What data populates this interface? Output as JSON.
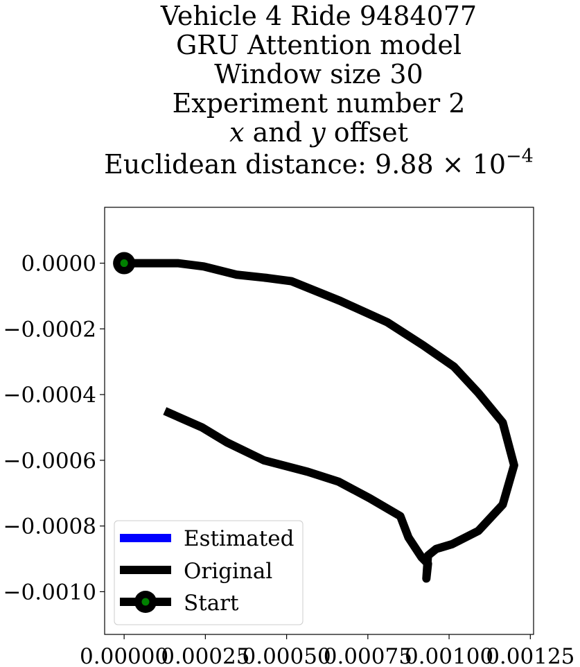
{
  "chart_data": {
    "type": "line",
    "title_lines": [
      "Vehicle 4 Ride 9484077",
      "GRU Attention model",
      "Window size 30",
      "Experiment number 2",
      "x and y offset",
      "Euclidean distance: 9.88 × 10⁻⁴"
    ],
    "title_parts": {
      "line5_x": "x",
      "line5_and": " and ",
      "line5_y": "y",
      "line5_rest": " offset",
      "line6_prefix": "Euclidean distance: ",
      "line6_mantissa": "9.88",
      "line6_times": " × 10",
      "line6_exponent": "−4"
    },
    "xlabel": "",
    "ylabel": "",
    "xlim": [
      -6e-05,
      0.00126
    ],
    "ylim": [
      -0.00113,
      0.00017
    ],
    "x_ticks": [
      0,
      0.00025,
      0.0005,
      0.00075,
      0.001,
      0.00125
    ],
    "x_tick_labels": [
      "0.00000",
      "0.00025",
      "0.00050",
      "0.00075",
      "0.00100",
      "0.00125"
    ],
    "y_ticks": [
      0,
      -0.0002,
      -0.0004,
      -0.0006,
      -0.0008,
      -0.001
    ],
    "y_tick_labels": [
      "0.0000",
      "−0.0002",
      "−0.0004",
      "−0.0006",
      "−0.0008",
      "−0.0010"
    ],
    "grid": false,
    "legend_position": "lower-left",
    "series": [
      {
        "name": "Estimated",
        "color": "#0000ff",
        "x": [],
        "y": []
      },
      {
        "name": "Original",
        "color": "#000000",
        "x": [
          0,
          0.000165,
          0.000245,
          0.000345,
          0.00044,
          0.000515,
          0.000665,
          0.00081,
          0.00092,
          0.001015,
          0.00109,
          0.001165,
          0.0012,
          0.001165,
          0.00109,
          0.00101,
          0.00096,
          0.000935,
          0.00093,
          0.000935,
          0.000915,
          0.000875,
          0.00085,
          0.000755,
          0.00066,
          0.000565,
          0.00043,
          0.000315,
          0.00024,
          0.000125
        ],
        "y": [
          0,
          0,
          -1e-05,
          -3.5e-05,
          -4.5e-05,
          -5.5e-05,
          -0.000115,
          -0.00018,
          -0.00025,
          -0.000315,
          -0.000395,
          -0.000485,
          -0.000615,
          -0.000735,
          -0.000815,
          -0.000855,
          -0.00087,
          -0.00089,
          -0.00096,
          -0.000915,
          -0.000895,
          -0.000835,
          -0.00077,
          -0.000715,
          -0.000665,
          -0.000635,
          -0.0006,
          -0.000545,
          -0.0005,
          -0.00045
        ]
      }
    ],
    "start_marker": {
      "name": "Start",
      "x": 0,
      "y": 0,
      "outer_color": "#000000",
      "inner_color": "#008000"
    },
    "legend": [
      {
        "label": "Estimated",
        "kind": "line",
        "color": "#0000ff"
      },
      {
        "label": "Original",
        "kind": "line",
        "color": "#000000"
      },
      {
        "label": "Start",
        "kind": "marker",
        "color": "#000000",
        "inner_color": "#008000"
      }
    ]
  }
}
